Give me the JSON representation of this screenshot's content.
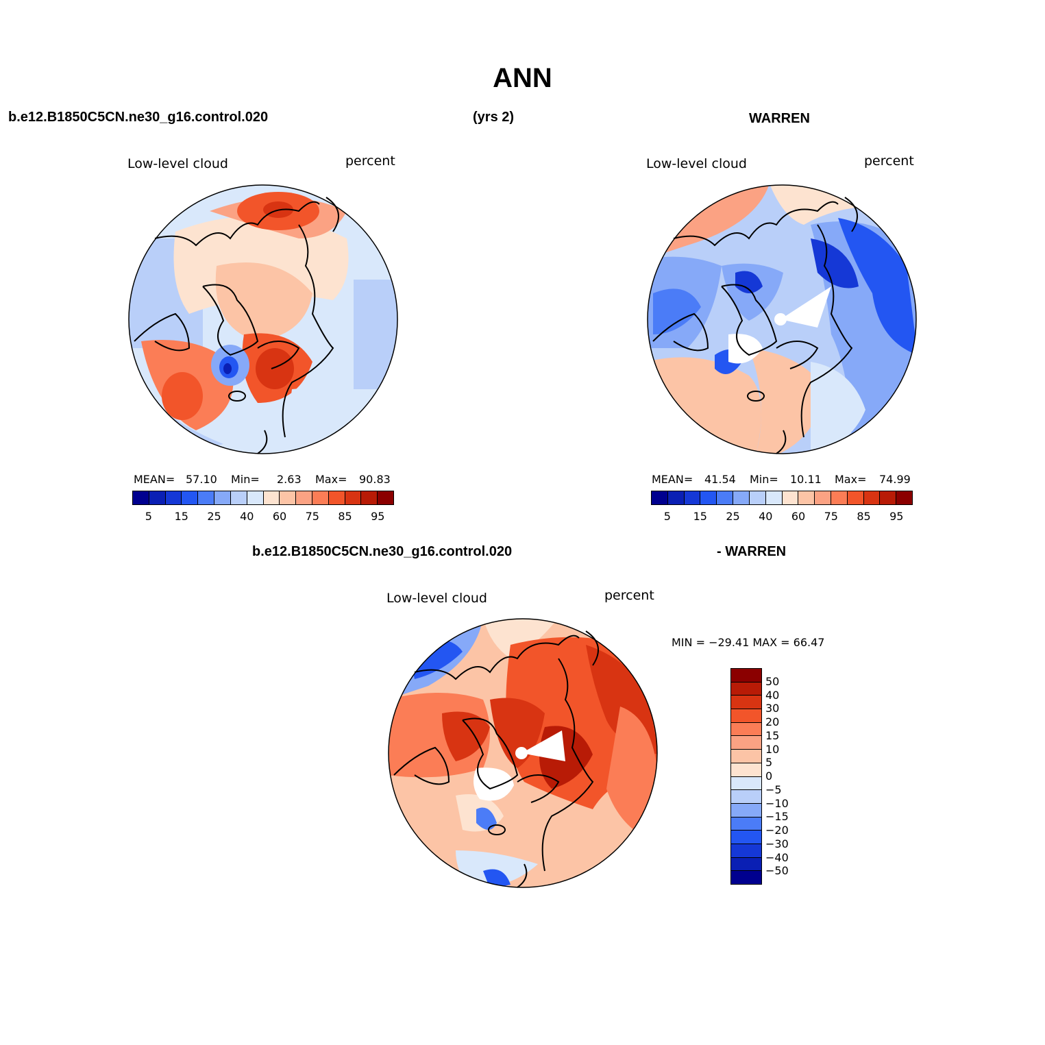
{
  "title": "ANN",
  "header": {
    "case_name": "b.e12.B1850C5CN.ne30_g16.control.020",
    "years": "(yrs 2)",
    "obs_name": "WARREN",
    "diff_case": "b.e12.B1850C5CN.ne30_g16.control.020",
    "diff_obs": "- WARREN"
  },
  "panels": {
    "model": {
      "variable": "Low-level cloud",
      "units": "percent",
      "mean_label": "MEAN=",
      "mean": "57.10",
      "min_label": "Min=",
      "min": "2.63",
      "max_label": "Max=",
      "max": "90.83"
    },
    "obs": {
      "variable": "Low-level cloud",
      "units": "percent",
      "mean_label": "MEAN=",
      "mean": "41.54",
      "min_label": "Min=",
      "min": "10.11",
      "max_label": "Max=",
      "max": "74.99"
    },
    "diff": {
      "variable": "Low-level cloud",
      "units": "percent",
      "minmax_text": "MIN = −29.41 MAX =   66.47"
    }
  },
  "colorbar_abs": {
    "ticks": [
      "5",
      "15",
      "25",
      "40",
      "60",
      "75",
      "85",
      "95"
    ],
    "colors": [
      "#00008f",
      "#0a1fb4",
      "#1538d6",
      "#2356f2",
      "#4b7cf7",
      "#86a9f8",
      "#b9cff9",
      "#d9e8fb",
      "#fde3d0",
      "#fcc4a6",
      "#fba283",
      "#fb7d56",
      "#f2552a",
      "#d83412",
      "#b81b06",
      "#8b0000"
    ]
  },
  "colorbar_diff": {
    "ticks": [
      "50",
      "40",
      "30",
      "20",
      "15",
      "10",
      "5",
      "0",
      "−5",
      "−10",
      "−15",
      "−20",
      "−30",
      "−40",
      "−50"
    ],
    "colors": [
      "#8b0000",
      "#b81b06",
      "#d83412",
      "#f2552a",
      "#fb7d56",
      "#fba283",
      "#fcc4a6",
      "#fde3d0",
      "#d9e8fb",
      "#b9cff9",
      "#86a9f8",
      "#4b7cf7",
      "#2356f2",
      "#1538d6",
      "#0a1fb4",
      "#00008f"
    ]
  }
}
